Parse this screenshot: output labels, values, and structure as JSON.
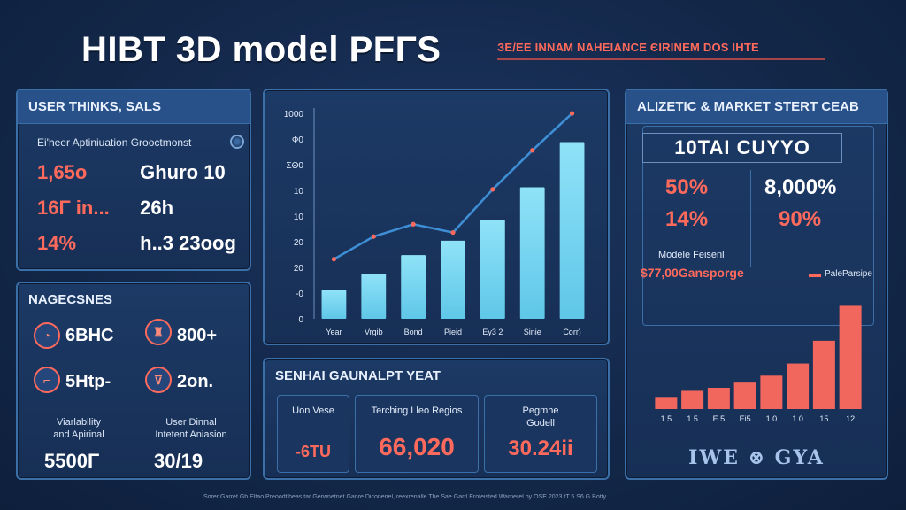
{
  "header": {
    "title": "HIBT 3D model PFΓS",
    "subtitle": "ЗЕ/ЕЕ INNAM NAHEIANCE ЄIRINEM DOS IHTE"
  },
  "user_panel": {
    "heading": "USER THINKS, SALS",
    "subheading": "Ei'heer Aptiniuation Grooctmonst",
    "rows": [
      {
        "a": "1,65o",
        "b": "Ghuro 10"
      },
      {
        "a": "16Γ in...",
        "b": "26h"
      },
      {
        "a": "14%",
        "b": "h..3 23oog"
      }
    ]
  },
  "nagecsnes_panel": {
    "heading": "NAGECSNES",
    "items": [
      {
        "icon": "ring-icon",
        "glyph": "◔",
        "value": "6BHC",
        "value_color": "white"
      },
      {
        "icon": "trophy-icon",
        "glyph": "♜",
        "value": "800+",
        "value_color": "white"
      },
      {
        "icon": "chat-icon",
        "glyph": "⌐",
        "value": "5Htp-",
        "value_color": "white"
      },
      {
        "icon": "cup-icon",
        "glyph": "⊽",
        "value": "2on.",
        "value_color": "white"
      }
    ],
    "stats": [
      {
        "label_1": "Viarlabllity",
        "label_2": "and Apirinal",
        "value": "5500Γ"
      },
      {
        "label_1": "User Dinnal",
        "label_2": "Intetent Aniasion",
        "value": "30/19"
      }
    ]
  },
  "chart_data": [
    {
      "type": "bar",
      "title": "",
      "xlabel": "",
      "ylabel": "",
      "categories": [
        "Year",
        "Vrgib",
        "Bond",
        "Pieid",
        "Ey3 2",
        "Sinie",
        "Corr)"
      ],
      "yticks": [
        "1000",
        "Ф0",
        "ΣΘ0",
        "10",
        "10",
        "20",
        "20",
        "-0",
        "0"
      ],
      "ylim": [
        0,
        100
      ],
      "series": [
        {
          "name": "bars",
          "values": [
            14,
            22,
            31,
            38,
            48,
            64,
            86
          ]
        },
        {
          "name": "trend-line",
          "values": [
            29,
            40,
            46,
            42,
            63,
            82,
            100
          ]
        }
      ],
      "colors": {
        "bar": "#5fc7e8",
        "line": "#3f8fd6",
        "markers": "#ff6a5c"
      }
    },
    {
      "type": "bar",
      "title": "",
      "categories": [
        "1 5",
        "1 5",
        "E 5",
        "Ei5",
        "1 0",
        "1 0",
        "15",
        "12"
      ],
      "values": [
        8,
        12,
        14,
        18,
        22,
        30,
        45,
        68
      ],
      "ylim": [
        0,
        70
      ],
      "colors": {
        "bar": "#f2675d"
      }
    }
  ],
  "sentiment_panel": {
    "heading": "SENΗAI GAUNALPT YEAT",
    "cells": [
      {
        "label": "Uon Vese",
        "value": "-6TU",
        "value_size": "sm"
      },
      {
        "label": "Terching Lleo Regios",
        "value": "66,020",
        "value_size": "lg"
      },
      {
        "label": "Pegmhe\nGodell",
        "value": "30.24ii",
        "value_size": "md"
      }
    ]
  },
  "market_panel": {
    "heading": "ALIZETIC & MARKET STERT CEAB",
    "box_title": "10TAI CUΥΥO",
    "pcts": [
      {
        "value": "50%",
        "color": "red"
      },
      {
        "value": "8,000%",
        "color": "white"
      },
      {
        "value": "14%",
        "color": "red"
      },
      {
        "value": "90%",
        "color": "red"
      }
    ],
    "model_label": "Modele Feisenl",
    "model_value": "$77,00Gansporge",
    "legend_label": "PaleParsipe",
    "footer": "IWE ⊗ GYA"
  },
  "fineprint": "Sorer Garret Gb Eltao Preoodtlheas tar Gerwnetnet Ganre Diconenel, reexrenalle The Sae Garrl Eroteisted Warnerel by OSE 2023 tT 5 S6 G Botty",
  "colors": {
    "accent_red": "#ff6a5c",
    "panel_border": "#3b6fa8",
    "bar_blue": "#5fc7e8"
  }
}
